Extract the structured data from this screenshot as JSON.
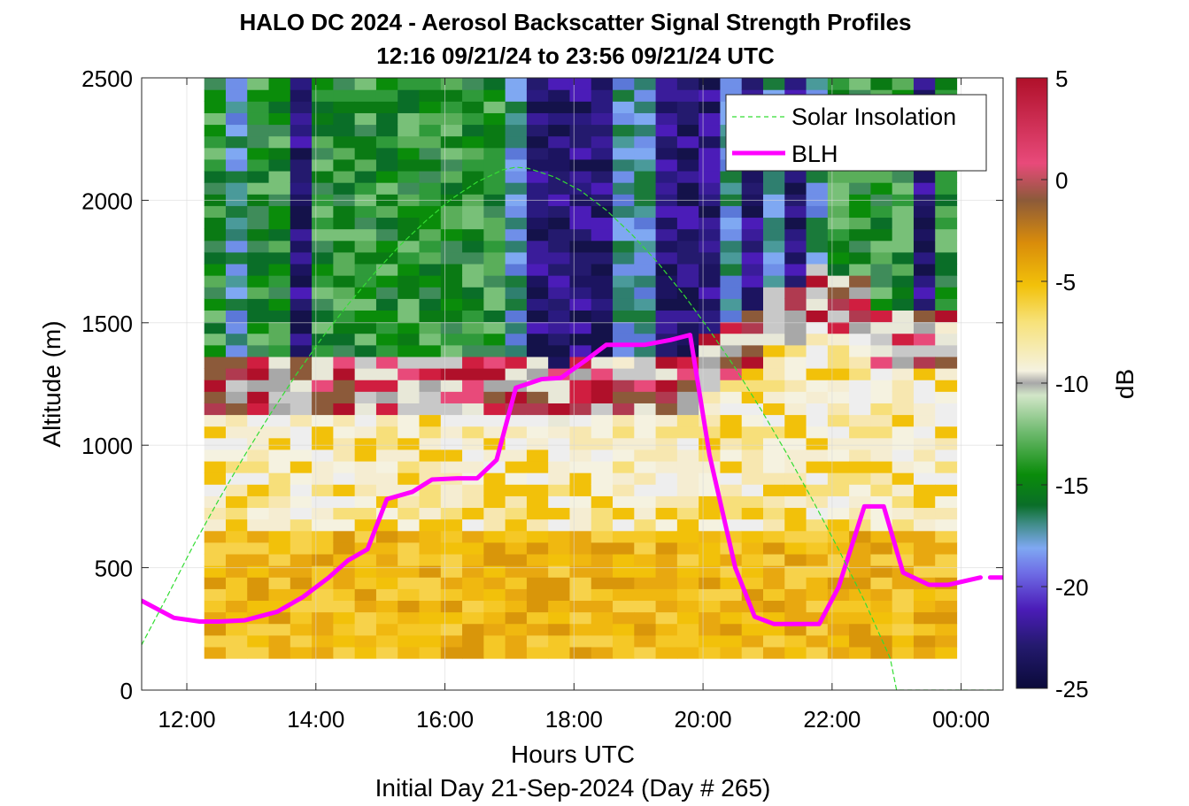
{
  "chart_data": {
    "type": "heatmap",
    "title": "HALO DC 2024 - Aerosol Backscatter Signal Strength Profiles",
    "subtitle": "12:16 09/21/24 to 23:56 09/21/24  UTC",
    "xlabel": "Hours UTC",
    "footer": "Initial Day 21-Sep-2024 (Day # 265)",
    "ylabel": "Altitude (m)",
    "colorbar_label": "dB",
    "xlim_hours": [
      11.3,
      24.65
    ],
    "ylim": [
      0,
      2500
    ],
    "x_ticks": [
      {
        "value": 12,
        "label": "12:00"
      },
      {
        "value": 14,
        "label": "14:00"
      },
      {
        "value": 16,
        "label": "16:00"
      },
      {
        "value": 18,
        "label": "18:00"
      },
      {
        "value": 20,
        "label": "20:00"
      },
      {
        "value": 22,
        "label": "22:00"
      },
      {
        "value": 24,
        "label": "00:00"
      }
    ],
    "y_ticks": [
      0,
      500,
      1000,
      1500,
      2000,
      2500
    ],
    "colorbar_ticks": [
      5,
      0,
      -5,
      -10,
      -15,
      -20,
      -25
    ],
    "clim": [
      -25,
      5
    ],
    "grid": true,
    "legend_location": "top-right",
    "heatmap": {
      "x_start_hour": 12.27,
      "x_end_hour": 23.93,
      "columns": 35,
      "y_start": 130,
      "y_end": 2500,
      "rows": 50,
      "cloud_tops_m": [
        1290,
        1290,
        1290,
        1290,
        1290,
        1290,
        1290,
        1290,
        1290,
        1290,
        1290,
        1290,
        1290,
        1290,
        1290,
        1290,
        1270,
        1300,
        1300,
        1300,
        1300,
        1300,
        1300,
        1400,
        1440,
        1500,
        1600,
        1600,
        1700,
        1650,
        1650,
        1500,
        1500,
        1500,
        1500
      ],
      "noise_band_m": [
        1450,
        1450,
        1450,
        1350,
        1450,
        1450,
        1450,
        1450,
        1450,
        1450,
        1450,
        1450,
        1450,
        1450,
        1450,
        1450,
        1450,
        1450,
        1450,
        1450,
        1450,
        1450,
        1450,
        1450,
        1450,
        1450,
        1450,
        1450,
        1450,
        1450,
        1450,
        1450,
        1450,
        1450,
        1450
      ],
      "column_regime": [
        "green",
        "blue",
        "green",
        "green",
        "purple",
        "green",
        "green",
        "green",
        "green",
        "green",
        "green",
        "green",
        "green",
        "green",
        "blue",
        "purple",
        "purple",
        "purple",
        "purple",
        "blue",
        "blue",
        "purple",
        "purple",
        "purple",
        "blue",
        "purple",
        "blue",
        "purple",
        "blue",
        "green",
        "green",
        "green",
        "green",
        "purple",
        "green"
      ],
      "column_seed": [
        3,
        7,
        11,
        2,
        5,
        13,
        17,
        19,
        23,
        29,
        31,
        37,
        41,
        43,
        47,
        53,
        59,
        61,
        67,
        71,
        73,
        79,
        83,
        89,
        97,
        101,
        103,
        107,
        109,
        113,
        127,
        131,
        137,
        139,
        149
      ]
    },
    "series": [
      {
        "name": "BLH",
        "color": "#ff00ff",
        "x": [
          11.3,
          11.8,
          12.2,
          12.5,
          12.9,
          13.4,
          13.8,
          14.2,
          14.5,
          14.8,
          15.1,
          15.5,
          15.8,
          16.2,
          16.5,
          16.8,
          17.1,
          17.5,
          17.8,
          18.2,
          18.5,
          18.8,
          19.1,
          19.5,
          19.8,
          20.1,
          20.5,
          20.8,
          21.1,
          21.5,
          21.8,
          22.1,
          22.5,
          22.8,
          23.1,
          23.5,
          23.8,
          24.3
        ],
        "y": [
          365,
          295,
          280,
          280,
          285,
          320,
          380,
          460,
          530,
          575,
          780,
          810,
          860,
          865,
          865,
          940,
          1235,
          1270,
          1275,
          1350,
          1410,
          1410,
          1410,
          1430,
          1450,
          960,
          500,
          300,
          270,
          270,
          270,
          420,
          750,
          750,
          480,
          430,
          430,
          460
        ]
      },
      {
        "name": "BLH",
        "color": "#ff00ff",
        "x": [
          24.45,
          24.65
        ],
        "y": [
          460,
          460
        ]
      },
      {
        "name": "Solar Insolation",
        "color": "#33dd33",
        "dashed": true,
        "x": [
          11.3,
          11.7,
          12.1,
          12.5,
          12.9,
          13.3,
          13.7,
          14.1,
          14.5,
          14.9,
          15.3,
          15.7,
          16.1,
          16.5,
          16.9,
          17.1,
          17.3,
          17.7,
          18.1,
          18.5,
          18.9,
          19.3,
          19.7,
          20.1,
          20.5,
          20.9,
          21.3,
          21.7,
          22.1,
          22.5,
          22.9,
          23.0,
          23.3,
          23.7,
          24.1,
          24.65
        ],
        "y": [
          185,
          385,
          590,
          780,
          960,
          1130,
          1290,
          1440,
          1575,
          1700,
          1815,
          1915,
          2005,
          2075,
          2125,
          2135,
          2130,
          2095,
          2040,
          1960,
          1860,
          1745,
          1615,
          1470,
          1315,
          1145,
          965,
          775,
          575,
          365,
          130,
          0,
          0,
          0,
          0,
          0
        ]
      }
    ],
    "legend": [
      {
        "label": "Solar Insolation",
        "color": "#33dd33",
        "style": "dashed"
      },
      {
        "label": "BLH",
        "color": "#ff00ff",
        "style": "solid"
      }
    ]
  }
}
